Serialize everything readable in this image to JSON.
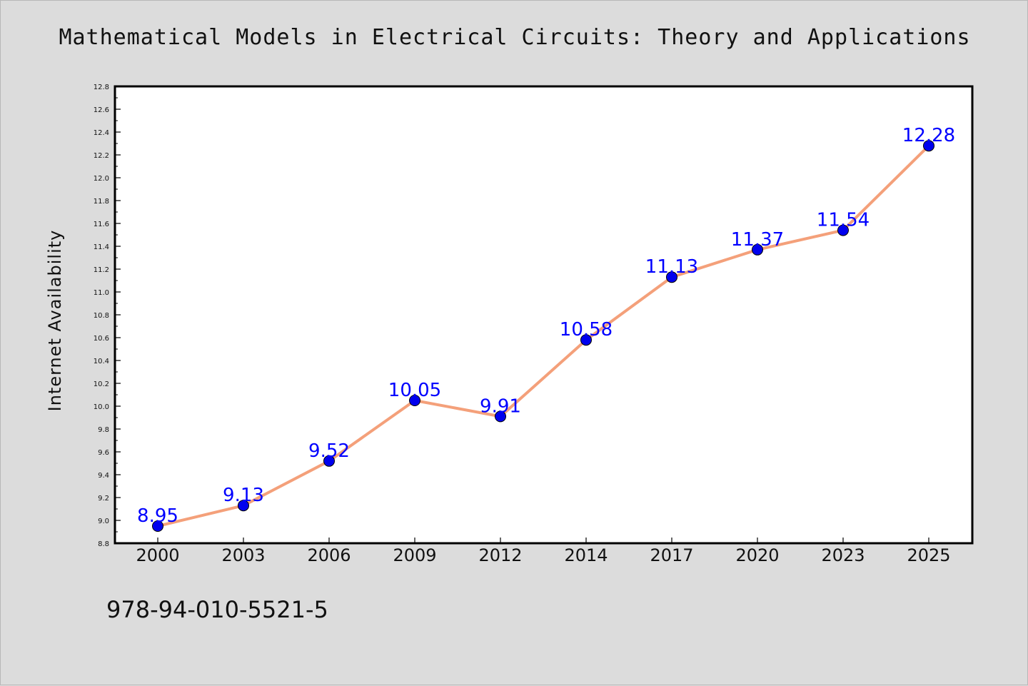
{
  "title": "Mathematical Models in Electrical Circuits: Theory and Applications",
  "isbn": "978-94-010-5521-5",
  "chart_data": {
    "type": "line",
    "title": "Mathematical Models in Electrical Circuits: Theory and Applications",
    "xlabel": "",
    "ylabel": "Internet Availability",
    "categories": [
      "2000",
      "2003",
      "2006",
      "2009",
      "2012",
      "2014",
      "2017",
      "2020",
      "2023",
      "2025"
    ],
    "series": [
      {
        "values": [
          8.95,
          9.13,
          9.52,
          10.05,
          9.91,
          10.58,
          11.13,
          11.37,
          11.54,
          12.28
        ]
      }
    ],
    "data_labels": [
      "8.95",
      "9.13",
      "9.52",
      "10.05",
      "9.91",
      "10.58",
      "11.13",
      "11.37",
      "11.54",
      "12.28"
    ],
    "ylim": [
      8.8,
      12.8
    ],
    "yticks": [
      "8.8",
      "9.0",
      "9.2",
      "9.4",
      "9.6",
      "9.8",
      "10.0",
      "10.2",
      "10.4",
      "10.6",
      "10.8",
      "11.0",
      "11.2",
      "11.4",
      "11.6",
      "11.8",
      "12.0",
      "12.2",
      "12.4",
      "12.6",
      "12.8"
    ],
    "grid": false,
    "line_color": "#f4a07a",
    "marker_color": "#0000ee",
    "label_color": "#0000ff",
    "background_color": "#dcdcdc",
    "plot_background_color": "#ffffff"
  }
}
